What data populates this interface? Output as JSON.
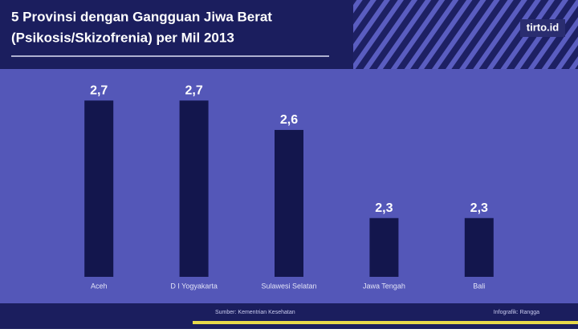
{
  "chart_data": {
    "type": "bar",
    "title": [
      "5 Provinsi dengan Gangguan Jiwa Berat",
      "(Psikosis/Skizofrenia) per Mil 2013"
    ],
    "brand": "tirto.id",
    "source": "Sumber: Kementrian Kesehatan",
    "credit": "Infografik: Rangga",
    "categories": [
      "Aceh",
      "D I Yogyakarta",
      "Sulawesi Selatan",
      "Jawa Tengah",
      "Bali"
    ],
    "values": [
      2.7,
      2.7,
      2.6,
      2.3,
      2.3
    ],
    "value_labels": [
      "2,7",
      "2,7",
      "2,6",
      "2,3",
      "2,3"
    ],
    "color": "#13164d",
    "ylim": [
      2.1,
      2.75
    ]
  }
}
